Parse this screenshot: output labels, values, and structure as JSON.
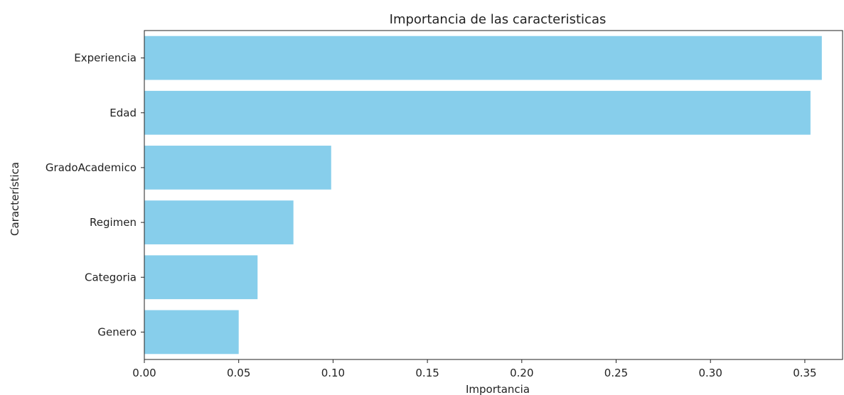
{
  "chart_data": {
    "type": "bar",
    "orientation": "horizontal",
    "title": "Importancia de las caracteristicas",
    "xlabel": "Importancia",
    "ylabel": "Característica",
    "categories": [
      "Experiencia",
      "Edad",
      "GradoAcademico",
      "Regimen",
      "Categoria",
      "Genero"
    ],
    "values": [
      0.359,
      0.353,
      0.099,
      0.079,
      0.06,
      0.05
    ],
    "xlim": [
      0.0,
      0.37
    ],
    "xticks": [
      "0.00",
      "0.05",
      "0.10",
      "0.15",
      "0.20",
      "0.25",
      "0.30",
      "0.35"
    ],
    "bar_color": "#87CEEB",
    "grid": false,
    "legend": "none"
  }
}
